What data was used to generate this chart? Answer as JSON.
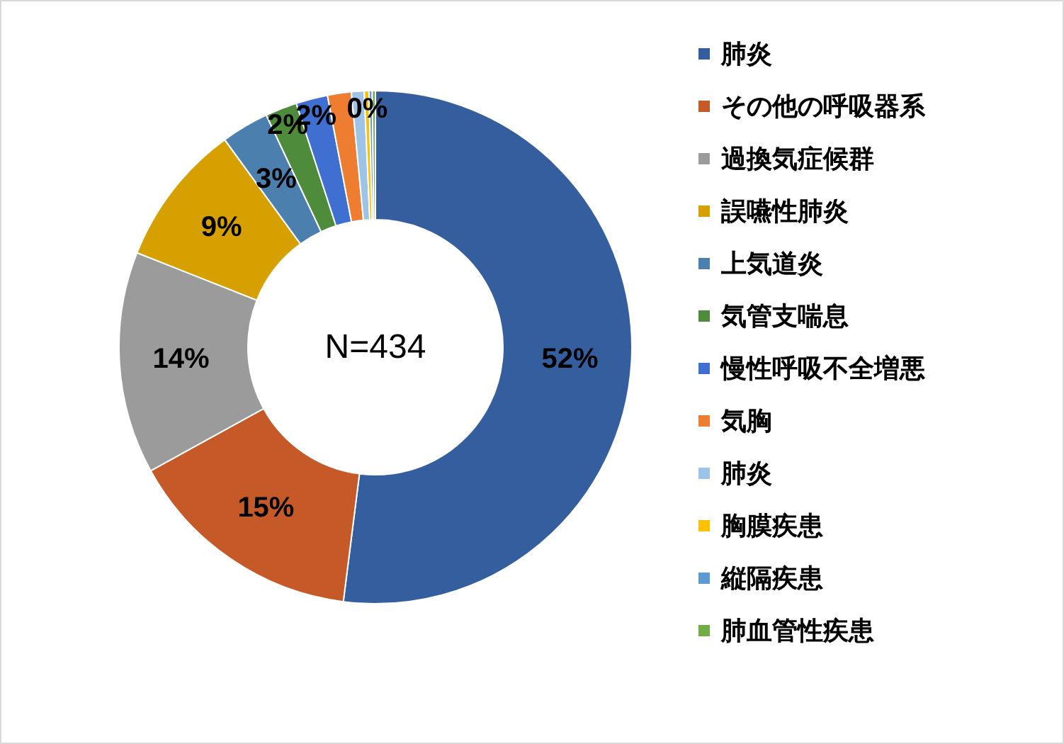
{
  "chart_data": {
    "type": "donut",
    "categories": [
      "肺炎",
      "その他の呼吸器系",
      "過換気症候群",
      "誤嚥性肺炎",
      "上気道炎",
      "気管支喘息",
      "慢性呼吸不全増悪",
      "気胸",
      "肺炎",
      "胸膜疾患",
      "縦隔疾患",
      "肺血管性疾患"
    ],
    "values": [
      52,
      15,
      14,
      9,
      3,
      2,
      2,
      1.5,
      0.8,
      0.3,
      0.2,
      0.2
    ],
    "colors": [
      "#355e9f",
      "#c55a28",
      "#9b9b9b",
      "#d6a000",
      "#4a7fae",
      "#4e8b3a",
      "#3f6fd0",
      "#ee7d31",
      "#9dc3e6",
      "#ffc000",
      "#5b9bd5",
      "#70ad47"
    ],
    "value_labels": [
      "52%",
      "15%",
      "14%",
      "9%",
      "3%",
      "2%",
      "2%",
      null,
      null,
      "0%",
      null,
      null
    ],
    "annotations": [
      "N=434"
    ],
    "legend": "right"
  }
}
